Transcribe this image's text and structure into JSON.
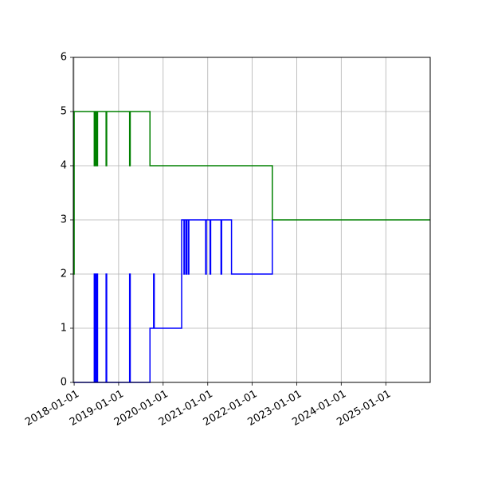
{
  "chart_data": {
    "type": "line",
    "title": "",
    "xlabel": "",
    "ylabel": "",
    "xlim": [
      "2017-12-25",
      "2025-12-31"
    ],
    "ylim": [
      0,
      6
    ],
    "grid": true,
    "legend": "none",
    "x_ticks": [
      "2018-01-01",
      "2019-01-01",
      "2020-01-01",
      "2021-01-01",
      "2022-01-01",
      "2023-01-01",
      "2024-01-01",
      "2025-01-01"
    ],
    "y_ticks": [
      0,
      1,
      2,
      3,
      4,
      5,
      6
    ],
    "series": [
      {
        "color": "#008000",
        "step": "post",
        "points": [
          [
            "2017-12-25",
            2
          ],
          [
            "2018-01-01",
            5
          ],
          [
            "2018-06-15",
            4
          ],
          [
            "2018-06-18",
            5
          ],
          [
            "2018-06-22",
            4
          ],
          [
            "2018-06-26",
            5
          ],
          [
            "2018-07-01",
            4
          ],
          [
            "2018-07-05",
            5
          ],
          [
            "2018-07-08",
            4
          ],
          [
            "2018-07-12",
            5
          ],
          [
            "2018-09-20",
            4
          ],
          [
            "2018-09-25",
            5
          ],
          [
            "2019-04-01",
            4
          ],
          [
            "2019-04-06",
            5
          ],
          [
            "2019-09-15",
            4
          ],
          [
            "2022-06-15",
            3
          ],
          [
            "2025-12-31",
            3
          ]
        ]
      },
      {
        "color": "#0000ff",
        "step": "post",
        "points": [
          [
            "2017-12-25",
            0
          ],
          [
            "2018-06-15",
            2
          ],
          [
            "2018-06-18",
            0
          ],
          [
            "2018-06-22",
            2
          ],
          [
            "2018-06-26",
            0
          ],
          [
            "2018-07-01",
            2
          ],
          [
            "2018-07-05",
            0
          ],
          [
            "2018-07-08",
            2
          ],
          [
            "2018-07-12",
            0
          ],
          [
            "2018-09-20",
            2
          ],
          [
            "2018-09-25",
            0
          ],
          [
            "2019-04-01",
            2
          ],
          [
            "2019-04-06",
            0
          ],
          [
            "2019-09-15",
            1
          ],
          [
            "2019-10-15",
            2
          ],
          [
            "2019-10-20",
            1
          ],
          [
            "2020-06-01",
            3
          ],
          [
            "2020-06-20",
            2
          ],
          [
            "2020-06-25",
            3
          ],
          [
            "2020-07-08",
            2
          ],
          [
            "2020-07-12",
            3
          ],
          [
            "2020-07-25",
            2
          ],
          [
            "2020-07-30",
            3
          ],
          [
            "2020-12-15",
            2
          ],
          [
            "2020-12-20",
            3
          ],
          [
            "2021-01-20",
            2
          ],
          [
            "2021-01-25",
            3
          ],
          [
            "2021-04-20",
            2
          ],
          [
            "2021-04-25",
            3
          ],
          [
            "2021-07-15",
            2
          ],
          [
            "2022-06-15",
            3
          ]
        ]
      }
    ]
  }
}
